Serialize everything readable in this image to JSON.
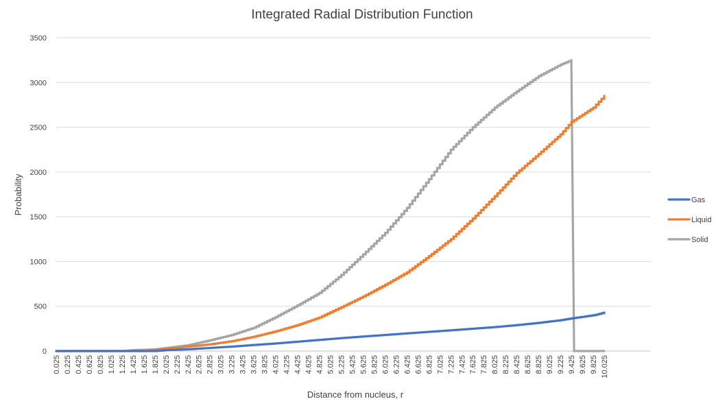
{
  "chart_data": {
    "type": "line",
    "title": "Integrated Radial Distribution Function",
    "xlabel": "Distance from nucleus, r",
    "ylabel": "Probability",
    "ylim": [
      0,
      3500
    ],
    "yticks": [
      0,
      500,
      1000,
      1500,
      2000,
      2500,
      3000,
      3500
    ],
    "xlim": [
      0.025,
      10.025
    ],
    "x_step": 0.05,
    "xticks": [
      "0.025",
      "0.225",
      "0.425",
      "0.625",
      "0.825",
      "1.025",
      "1.225",
      "1.425",
      "1.625",
      "1.825",
      "2.025",
      "2.225",
      "2.425",
      "2.625",
      "2.825",
      "3.025",
      "3.225",
      "3.425",
      "3.625",
      "3.825",
      "4.025",
      "4.225",
      "4.425",
      "4.625",
      "4.825",
      "5.025",
      "5.225",
      "5.425",
      "5.625",
      "5.825",
      "6.025",
      "6.225",
      "6.425",
      "6.625",
      "6.825",
      "7.025",
      "7.225",
      "7.425",
      "7.625",
      "7.825",
      "8.025",
      "8.225",
      "8.425",
      "8.625",
      "8.825",
      "9.025",
      "9.225",
      "9.425",
      "9.625",
      "9.825",
      "10.025"
    ],
    "grid": true,
    "legend_position": "right",
    "series": [
      {
        "name": "Gas",
        "color": "#4472c4",
        "points": [
          [
            0.025,
            0
          ],
          [
            1.825,
            0
          ],
          [
            2.025,
            10
          ],
          [
            2.425,
            20
          ],
          [
            2.825,
            35
          ],
          [
            3.225,
            50
          ],
          [
            3.625,
            68
          ],
          [
            4.025,
            85
          ],
          [
            4.425,
            105
          ],
          [
            4.825,
            125
          ],
          [
            5.225,
            145
          ],
          [
            5.625,
            163
          ],
          [
            6.025,
            180
          ],
          [
            6.425,
            198
          ],
          [
            6.825,
            215
          ],
          [
            7.225,
            232
          ],
          [
            7.625,
            250
          ],
          [
            8.025,
            268
          ],
          [
            8.425,
            290
          ],
          [
            8.825,
            315
          ],
          [
            9.225,
            345
          ],
          [
            9.425,
            365
          ],
          [
            9.825,
            400
          ],
          [
            10.025,
            430
          ]
        ]
      },
      {
        "name": "Liquid",
        "color": "#ed7d31",
        "points": [
          [
            0.025,
            0
          ],
          [
            1.625,
            0
          ],
          [
            2.025,
            25
          ],
          [
            2.425,
            50
          ],
          [
            2.825,
            75
          ],
          [
            3.225,
            110
          ],
          [
            3.625,
            160
          ],
          [
            4.025,
            220
          ],
          [
            4.425,
            290
          ],
          [
            4.825,
            375
          ],
          [
            5.225,
            490
          ],
          [
            5.625,
            610
          ],
          [
            6.025,
            740
          ],
          [
            6.425,
            880
          ],
          [
            6.825,
            1060
          ],
          [
            7.225,
            1250
          ],
          [
            7.625,
            1480
          ],
          [
            8.025,
            1730
          ],
          [
            8.425,
            1990
          ],
          [
            8.825,
            2200
          ],
          [
            9.225,
            2420
          ],
          [
            9.425,
            2560
          ],
          [
            9.825,
            2720
          ],
          [
            10.025,
            2850
          ]
        ]
      },
      {
        "name": "Solid",
        "color": "#a5a5a5",
        "points": [
          [
            0.025,
            0
          ],
          [
            1.225,
            0
          ],
          [
            1.425,
            10
          ],
          [
            1.825,
            20
          ],
          [
            2.025,
            35
          ],
          [
            2.425,
            65
          ],
          [
            2.825,
            120
          ],
          [
            3.225,
            180
          ],
          [
            3.625,
            260
          ],
          [
            4.025,
            380
          ],
          [
            4.425,
            510
          ],
          [
            4.825,
            650
          ],
          [
            5.225,
            850
          ],
          [
            5.625,
            1080
          ],
          [
            6.025,
            1320
          ],
          [
            6.425,
            1600
          ],
          [
            6.825,
            1920
          ],
          [
            7.225,
            2250
          ],
          [
            7.625,
            2500
          ],
          [
            8.025,
            2720
          ],
          [
            8.425,
            2900
          ],
          [
            8.825,
            3070
          ],
          [
            9.225,
            3200
          ],
          [
            9.425,
            3250
          ],
          [
            9.425,
            3245
          ],
          [
            9.475,
            0
          ],
          [
            10.025,
            0
          ]
        ]
      }
    ]
  }
}
